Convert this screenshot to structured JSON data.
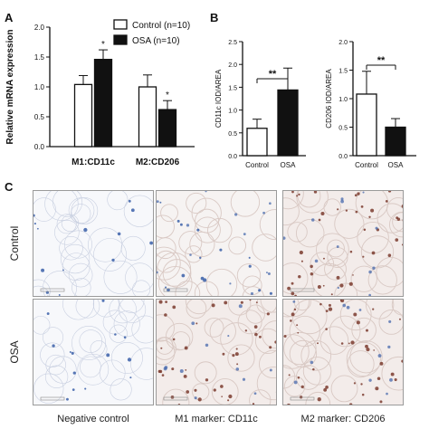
{
  "panel_labels": {
    "a": "A",
    "b": "B",
    "c": "C"
  },
  "chart_data": [
    {
      "type": "bar",
      "panel": "A",
      "ylabel": "Relative mRNA expression",
      "categories": [
        "M1:CD11c",
        "M2:CD206"
      ],
      "series": [
        {
          "name": "Control (n=10)",
          "values": [
            1.04,
            1.0
          ],
          "errors": [
            0.15,
            0.2
          ]
        },
        {
          "name": "OSA (n=10)",
          "values": [
            1.46,
            0.62
          ],
          "errors": [
            0.16,
            0.15
          ]
        }
      ],
      "ylim": [
        0,
        2.0
      ],
      "yticks": [
        "0.0",
        "0.5",
        "1.0",
        "1.5",
        "2.0"
      ],
      "annotations": [
        "*",
        "*"
      ],
      "legend": "top-right"
    },
    {
      "type": "bar",
      "panel": "B",
      "ylabel": "CD11c  IOD/AREA",
      "categories": [
        "Control",
        "OSA"
      ],
      "values": [
        0.6,
        1.44
      ],
      "errors": [
        0.2,
        0.48
      ],
      "ylim": [
        0,
        2.5
      ],
      "yticks": [
        "0.0",
        "0.5",
        "1.0",
        "1.5",
        "2.0",
        "2.5"
      ],
      "annotation": "**"
    },
    {
      "type": "bar",
      "panel": "B2",
      "ylabel": "CD206  IOD/AREA",
      "categories": [
        "Control",
        "OSA"
      ],
      "values": [
        1.08,
        0.5
      ],
      "errors": [
        0.4,
        0.15
      ],
      "ylim": [
        0,
        2.0
      ],
      "yticks": [
        "0.0",
        "0.5",
        "1.0",
        "1.5",
        "2.0"
      ],
      "annotation": "**"
    }
  ],
  "panel_c": {
    "row_labels": [
      "Control",
      "OSA"
    ],
    "column_labels": [
      "Negative control",
      "M1 marker:  CD11c",
      "M2 marker:  CD206"
    ],
    "colors": {
      "stain_blue": "#3a5fa8",
      "stain_brown": "#7a3b2e",
      "tissue": "#d9c9c4"
    }
  }
}
